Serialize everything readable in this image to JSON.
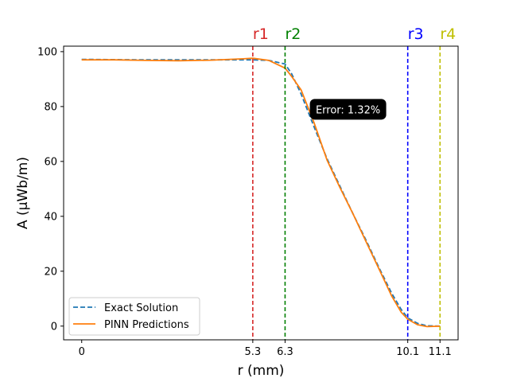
{
  "chart_data": {
    "type": "line",
    "xlabel": "r (mm)",
    "ylabel": "A (μWb/m)",
    "xlim": [
      -0.56,
      11.66
    ],
    "ylim": [
      -5,
      102
    ],
    "grid": false,
    "legend_position": "lower-left",
    "x_ticks": [
      {
        "value": 0,
        "label": "0"
      },
      {
        "value": 5.3,
        "label": "5.3"
      },
      {
        "value": 6.3,
        "label": "6.3"
      },
      {
        "value": 10.1,
        "label": "10.1"
      },
      {
        "value": 11.1,
        "label": "11.1"
      }
    ],
    "y_ticks": [
      {
        "value": 0,
        "label": "0"
      },
      {
        "value": 20,
        "label": "20"
      },
      {
        "value": 40,
        "label": "40"
      },
      {
        "value": 60,
        "label": "60"
      },
      {
        "value": 80,
        "label": "80"
      },
      {
        "value": 100,
        "label": "100"
      }
    ],
    "markers": [
      {
        "label": "r1",
        "x": 5.3,
        "color": "#d62728"
      },
      {
        "label": "r2",
        "x": 6.3,
        "color": "#008000"
      },
      {
        "label": "r3",
        "x": 10.1,
        "color": "#0000ff"
      },
      {
        "label": "r4",
        "x": 11.1,
        "color": "#bfbf00"
      }
    ],
    "annotation": {
      "text": "Error: 1.32%",
      "x": 8.25,
      "y": 79
    },
    "series": [
      {
        "name": "Exact Solution",
        "color": "#1f77b4",
        "style": "dashed",
        "x": [
          0,
          1,
          2,
          3,
          4,
          5,
          5.3,
          5.8,
          6.3,
          6.5,
          6.8,
          7.2,
          7.6,
          8.0,
          8.4,
          8.8,
          9.2,
          9.6,
          9.9,
          10.1,
          10.4,
          10.7,
          11.1
        ],
        "y": [
          97.2,
          97.1,
          97.0,
          97.0,
          97.0,
          97.0,
          97.0,
          96.8,
          95.5,
          92.0,
          84.5,
          72.5,
          61.0,
          51.0,
          41.0,
          31.5,
          21.5,
          12.0,
          6.0,
          3.0,
          1.0,
          0.1,
          0.0
        ]
      },
      {
        "name": "PINN Predictions",
        "color": "#ff7f0e",
        "style": "solid",
        "x": [
          0,
          1,
          2,
          3,
          4,
          5,
          5.3,
          5.8,
          6.3,
          6.5,
          6.8,
          7.2,
          7.6,
          8.0,
          8.4,
          8.8,
          9.2,
          9.6,
          9.9,
          10.1,
          10.4,
          10.7,
          11.1
        ],
        "y": [
          97.0,
          97.0,
          96.8,
          96.7,
          96.9,
          97.4,
          97.6,
          96.8,
          94.0,
          91.0,
          86.0,
          74.0,
          60.5,
          50.5,
          41.0,
          31.0,
          21.0,
          11.0,
          5.0,
          2.5,
          0.5,
          -0.2,
          0.0
        ]
      }
    ]
  }
}
